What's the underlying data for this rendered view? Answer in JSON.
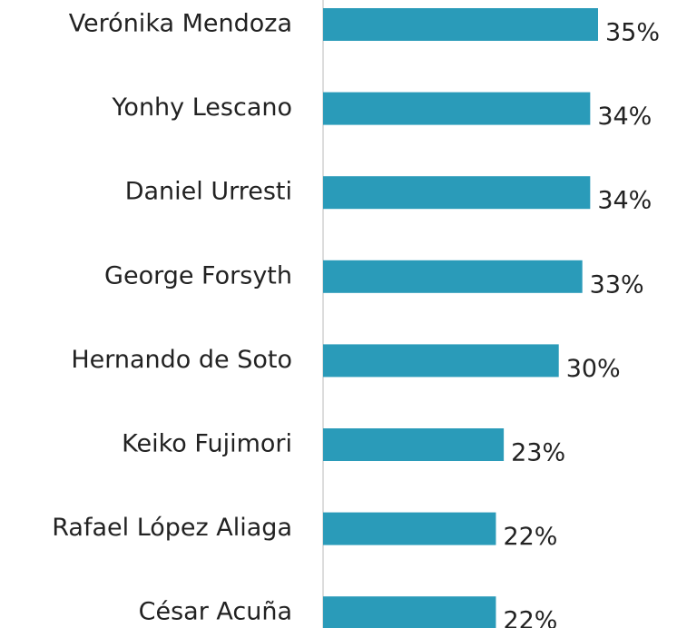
{
  "chart_data": {
    "type": "barh",
    "categories": [
      "Verónika Mendoza",
      "Yonhy Lescano",
      "Daniel Urresti",
      "George Forsyth",
      "Hernando de Soto",
      "Keiko Fujimori",
      "Rafael López Aliaga",
      "César Acuña"
    ],
    "values": [
      35,
      34,
      34,
      33,
      30,
      23,
      22,
      22
    ],
    "value_labels": [
      "35%",
      "34%",
      "34%",
      "33%",
      "30%",
      "23%",
      "22%",
      "22%"
    ],
    "color": "#2a9bb9"
  }
}
